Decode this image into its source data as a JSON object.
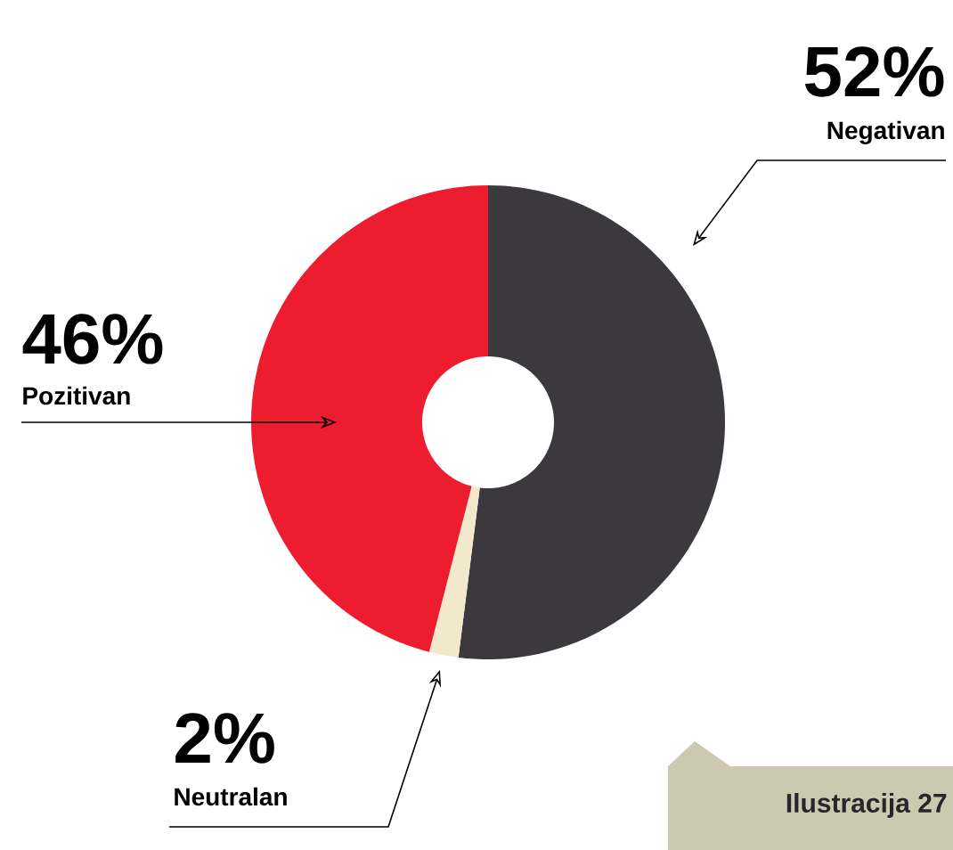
{
  "chart_data": {
    "type": "donut",
    "categories": [
      "Negativan",
      "Neutralan",
      "Pozitivan"
    ],
    "values": [
      52,
      2,
      46
    ],
    "colors": [
      "#3b383e",
      "#f2e8cc",
      "#ed1c2e"
    ],
    "value_labels": [
      "52%",
      "2%",
      "46%"
    ],
    "annotations": [
      "Ilustracija 27"
    ]
  }
}
